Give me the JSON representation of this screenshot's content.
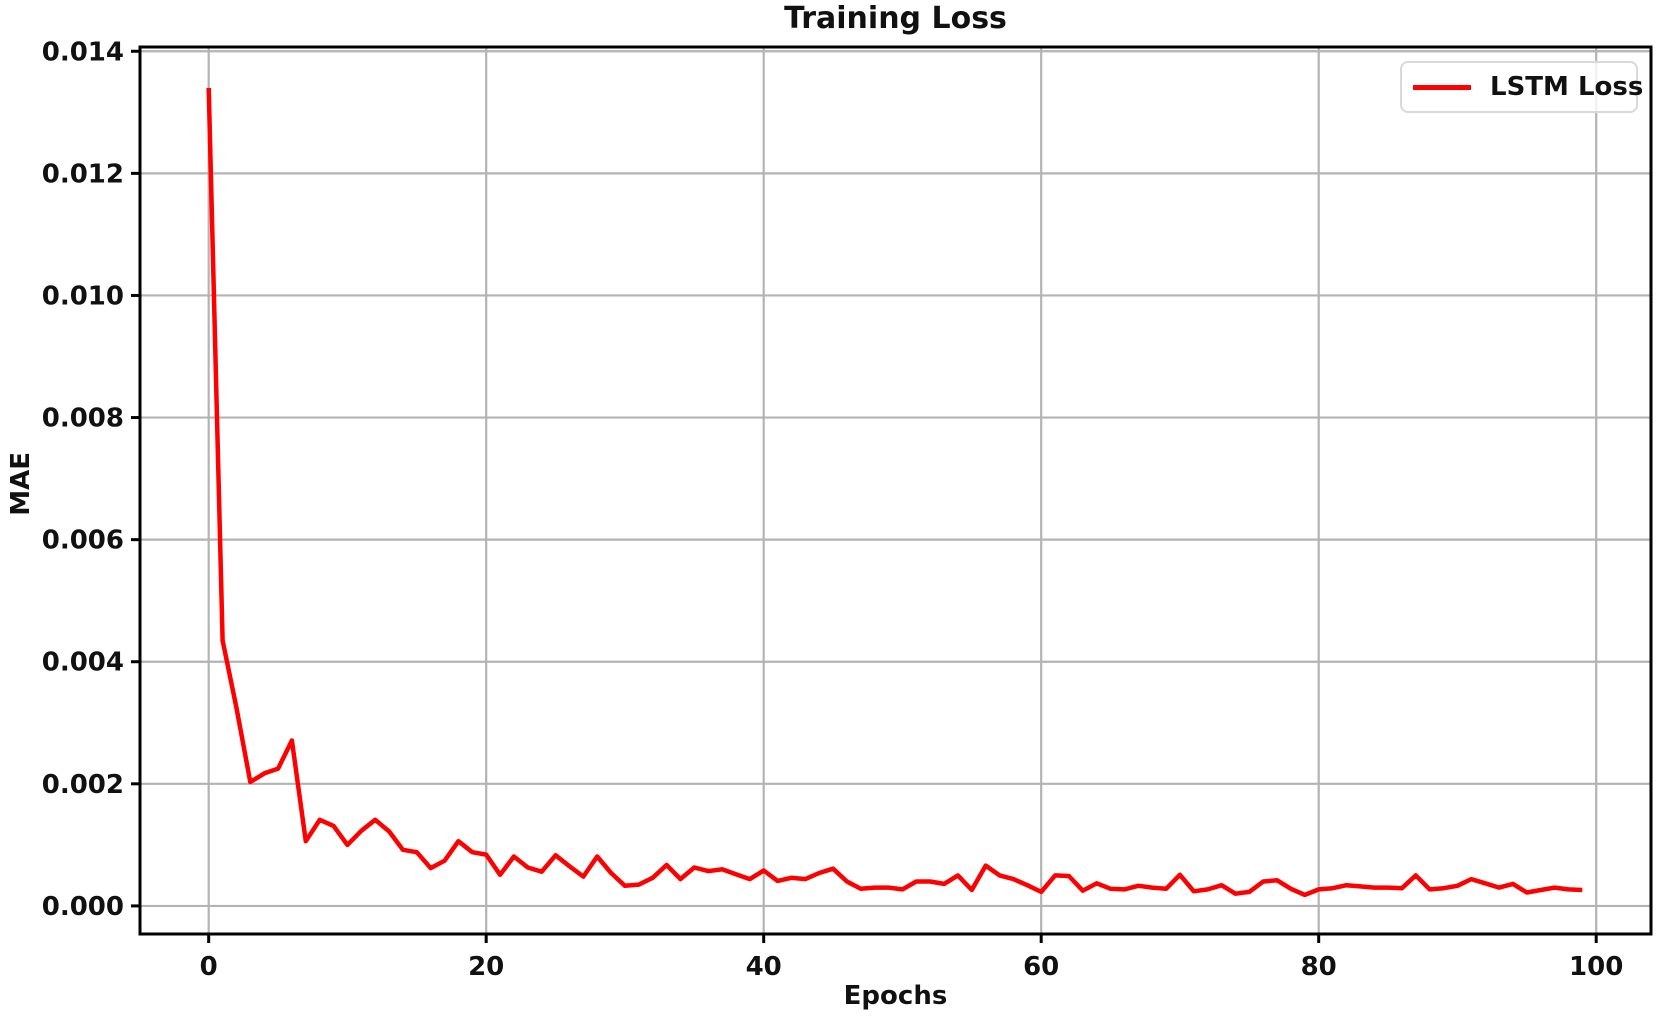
{
  "chart_data": {
    "type": "line",
    "title": "Training Loss",
    "xlabel": "Epochs",
    "ylabel": "MAE",
    "xlim": [
      -4.95,
      103.95
    ],
    "ylim": [
      -0.00046,
      0.01407
    ],
    "xticks": [
      0,
      20,
      40,
      60,
      80,
      100
    ],
    "yticks": [
      0.0,
      0.002,
      0.004,
      0.006,
      0.008,
      0.01,
      0.012,
      0.014
    ],
    "ytick_decimals": 3,
    "grid": true,
    "colors": {
      "line": "#ff0000",
      "grid": "#b3b3b3",
      "spine": "#000000",
      "text": "#111111",
      "legend_border": "#d9d9d9",
      "background": "#ffffff"
    },
    "legend": {
      "position": "upper right",
      "entries": [
        {
          "label": "LSTM Loss",
          "color": "#ff0000"
        }
      ]
    },
    "series": [
      {
        "name": "LSTM Loss",
        "color": "#ff0000",
        "x_start": 0,
        "x_step": 1,
        "values": [
          0.0134,
          0.00435,
          0.00325,
          0.00203,
          0.00217,
          0.00225,
          0.00271,
          0.00106,
          0.00141,
          0.00131,
          0.001,
          0.00123,
          0.00141,
          0.00122,
          0.00092,
          0.00088,
          0.00062,
          0.00074,
          0.00106,
          0.00088,
          0.00084,
          0.00051,
          0.00081,
          0.00063,
          0.00056,
          0.00083,
          0.00065,
          0.00048,
          0.00081,
          0.00054,
          0.00033,
          0.00035,
          0.00046,
          0.00067,
          0.00044,
          0.00063,
          0.00057,
          0.0006,
          0.00052,
          0.00044,
          0.00058,
          0.00041,
          0.00046,
          0.00044,
          0.00054,
          0.00061,
          0.0004,
          0.00028,
          0.0003,
          0.0003,
          0.00027,
          0.0004,
          0.0004,
          0.00036,
          0.0005,
          0.00026,
          0.00066,
          0.0005,
          0.00044,
          0.00034,
          0.00023,
          0.0005,
          0.00049,
          0.00025,
          0.00037,
          0.00028,
          0.00027,
          0.00033,
          0.0003,
          0.00028,
          0.00051,
          0.00024,
          0.00027,
          0.00034,
          0.0002,
          0.00023,
          0.0004,
          0.00042,
          0.00028,
          0.00018,
          0.00027,
          0.00029,
          0.00034,
          0.00032,
          0.0003,
          0.0003,
          0.00029,
          0.0005,
          0.00027,
          0.00029,
          0.00033,
          0.00044,
          0.00037,
          0.0003,
          0.00036,
          0.00022,
          0.00026,
          0.0003,
          0.00027,
          0.00026
        ]
      }
    ]
  }
}
